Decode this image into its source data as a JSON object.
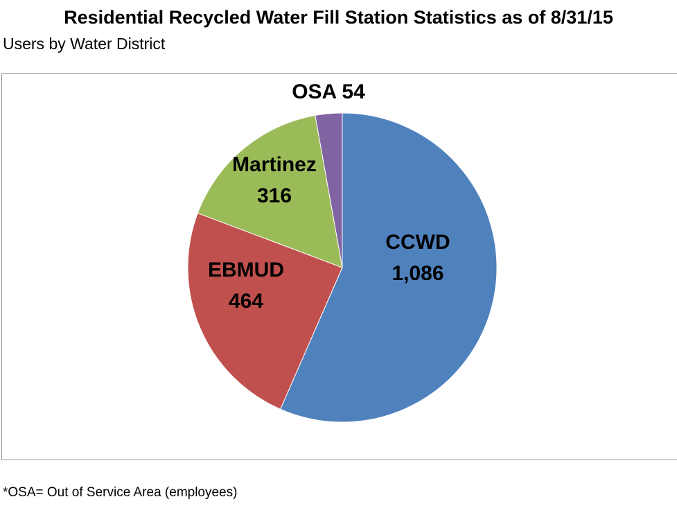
{
  "chart_data": {
    "type": "pie",
    "title": "Residential Recycled Water Fill Station Statistics as of 8/31/15",
    "subtitle": "Users by Water District",
    "slices": [
      {
        "label": "CCWD",
        "value": 1086,
        "value_label": "1,086",
        "color": "#4F81BD"
      },
      {
        "label": "EBMUD",
        "value": 464,
        "value_label": "464",
        "color": "#C0504D"
      },
      {
        "label": "Martinez",
        "value": 316,
        "value_label": "316",
        "color": "#9BBB59"
      },
      {
        "label": "OSA",
        "value": 54,
        "value_label": "54",
        "color": "#8064A2"
      }
    ],
    "start": "12 o'clock",
    "direction": "clockwise"
  },
  "footnote": "*OSA= Out of Service Area (employees)"
}
